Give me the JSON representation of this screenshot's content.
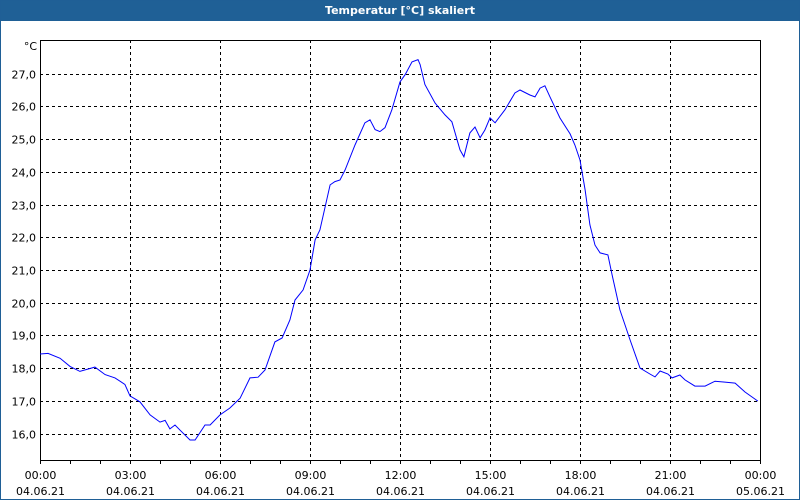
{
  "window": {
    "title": "Temperatur [°C] skaliert"
  },
  "chart_data": {
    "type": "line",
    "title": "Temperatur [°C] skaliert",
    "ylabel": "°C",
    "xlabel": "",
    "ylim": [
      15.19,
      28.03
    ],
    "xlim": [
      0,
      24
    ],
    "grid": true,
    "y_ticks": [
      {
        "value": 16,
        "label": "16,0"
      },
      {
        "value": 17,
        "label": "17,0"
      },
      {
        "value": 18,
        "label": "18,0"
      },
      {
        "value": 19,
        "label": "19,0"
      },
      {
        "value": 20,
        "label": "20,0"
      },
      {
        "value": 21,
        "label": "21,0"
      },
      {
        "value": 22,
        "label": "22,0"
      },
      {
        "value": 23,
        "label": "23,0"
      },
      {
        "value": 24,
        "label": "24,0"
      },
      {
        "value": 25,
        "label": "25,0"
      },
      {
        "value": 26,
        "label": "26,0"
      },
      {
        "value": 27,
        "label": "27,0"
      }
    ],
    "x_ticks": [
      {
        "value": 0,
        "time": "00:00",
        "date": "04.06.21"
      },
      {
        "value": 3,
        "time": "03:00",
        "date": "04.06.21"
      },
      {
        "value": 6,
        "time": "06:00",
        "date": "04.06.21"
      },
      {
        "value": 9,
        "time": "09:00",
        "date": "04.06.21"
      },
      {
        "value": 12,
        "time": "12:00",
        "date": "04.06.21"
      },
      {
        "value": 15,
        "time": "15:00",
        "date": "04.06.21"
      },
      {
        "value": 18,
        "time": "18:00",
        "date": "04.06.21"
      },
      {
        "value": 21,
        "time": "21:00",
        "date": "04.06.21"
      },
      {
        "value": 24,
        "time": "00:00",
        "date": "05.06.21"
      }
    ],
    "series": [
      {
        "name": "Temperatur",
        "color": "#0000ff",
        "x": [
          0,
          0.27,
          0.67,
          1,
          1.33,
          1.83,
          2.17,
          2.5,
          2.83,
          3,
          3.33,
          3.67,
          4,
          4.17,
          4.33,
          4.5,
          4.67,
          5,
          5.17,
          5.5,
          5.67,
          6,
          6.33,
          6.67,
          7,
          7.27,
          7.5,
          7.83,
          8.07,
          8.33,
          8.5,
          8.77,
          9,
          9.17,
          9.33,
          9.67,
          9.83,
          10,
          10.17,
          10.5,
          10.83,
          11,
          11.17,
          11.33,
          11.5,
          11.73,
          12,
          12.17,
          12.4,
          12.6,
          12.67,
          12.83,
          13.17,
          13.5,
          13.73,
          14,
          14.13,
          14.33,
          14.5,
          14.67,
          14.83,
          15,
          15.17,
          15.5,
          15.83,
          16,
          16.33,
          16.5,
          16.67,
          16.83,
          17,
          17.33,
          17.67,
          17.83,
          18,
          18.17,
          18.33,
          18.5,
          18.67,
          18.93,
          19.07,
          19.33,
          19.5,
          19.67,
          20,
          20.33,
          20.5,
          20.67,
          20.93,
          21.07,
          21.33,
          21.5,
          21.83,
          22.17,
          22.5,
          22.83,
          23.17,
          23.5,
          23.93
        ],
        "y": [
          18.43,
          18.45,
          18.3,
          18.05,
          17.9,
          18.03,
          17.8,
          17.7,
          17.5,
          17.15,
          16.97,
          16.57,
          16.35,
          16.4,
          16.14,
          16.26,
          16.1,
          15.8,
          15.8,
          16.26,
          16.26,
          16.57,
          16.78,
          17.08,
          17.7,
          17.72,
          17.94,
          18.8,
          18.92,
          19.47,
          20.08,
          20.39,
          21.0,
          21.92,
          22.22,
          23.6,
          23.7,
          23.75,
          24.06,
          24.82,
          25.5,
          25.59,
          25.29,
          25.23,
          25.35,
          25.9,
          26.75,
          26.97,
          27.36,
          27.43,
          27.28,
          26.67,
          26.1,
          25.74,
          25.53,
          24.67,
          24.46,
          25.19,
          25.37,
          25.04,
          25.28,
          25.65,
          25.5,
          25.9,
          26.41,
          26.5,
          26.35,
          26.29,
          26.56,
          26.63,
          26.29,
          25.65,
          25.16,
          24.82,
          24.36,
          23.45,
          22.38,
          21.76,
          21.52,
          21.46,
          20.85,
          19.78,
          19.32,
          18.86,
          18.0,
          17.82,
          17.73,
          17.91,
          17.82,
          17.7,
          17.79,
          17.64,
          17.45,
          17.45,
          17.6,
          17.57,
          17.54,
          17.27,
          16.99
        ]
      }
    ]
  }
}
